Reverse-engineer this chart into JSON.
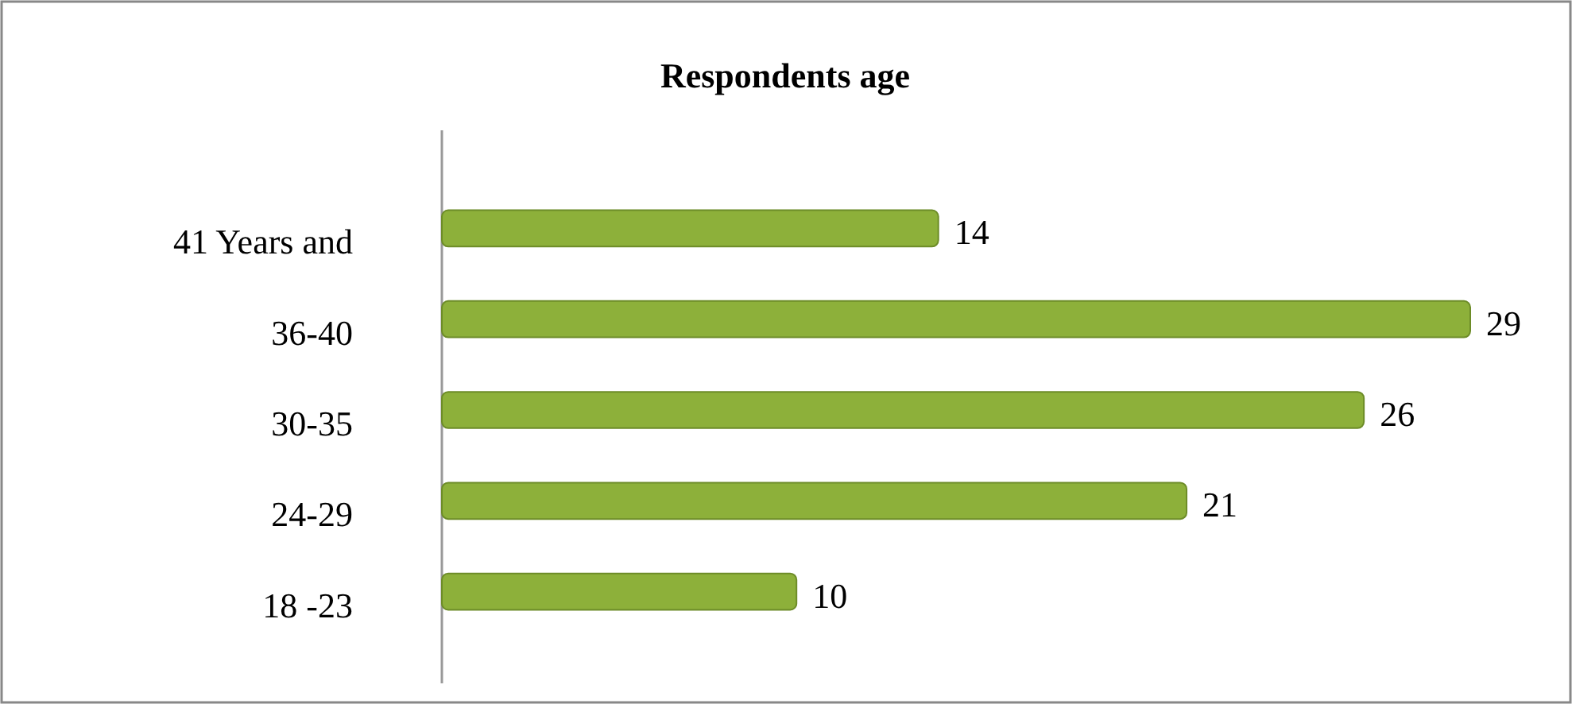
{
  "chart_data": {
    "type": "bar",
    "orientation": "horizontal",
    "title": "Respondents age",
    "categories": [
      "41 Years and",
      "36-40",
      "30-35",
      "24-29",
      "18 -23"
    ],
    "values": [
      14,
      29,
      26,
      21,
      10
    ],
    "color": "#8db03a",
    "data_labels": true
  }
}
